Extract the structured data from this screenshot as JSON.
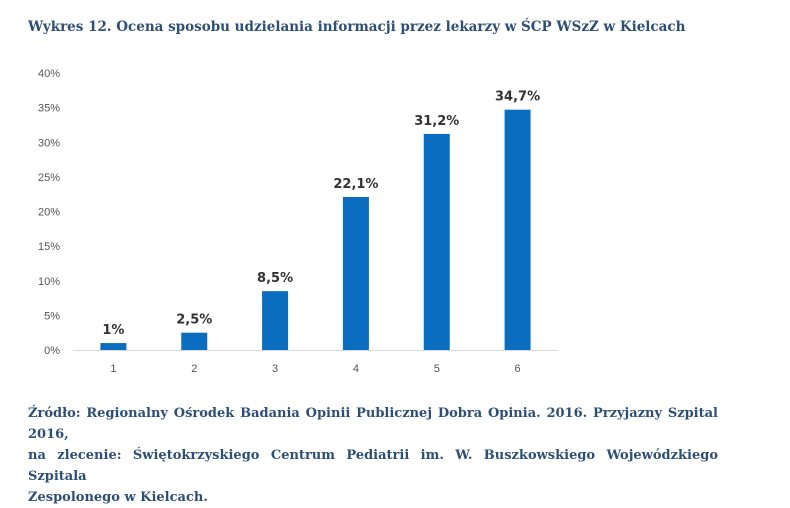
{
  "chart_data": {
    "type": "bar",
    "title": "Wykres 12. Ocena sposobu udzielania informacji przez lekarzy w ŚCP WSzZ w Kielcach",
    "categories": [
      "1",
      "2",
      "3",
      "4",
      "5",
      "6"
    ],
    "values": [
      1,
      2.5,
      8.5,
      22.1,
      31.2,
      34.7
    ],
    "data_labels": [
      "1%",
      "2,5%",
      "8,5%",
      "22,1%",
      "31,2%",
      "34,7%"
    ],
    "y_ticks": [
      "0%",
      "5%",
      "10%",
      "15%",
      "20%",
      "25%",
      "30%",
      "35%",
      "40%"
    ],
    "ylim": [
      0,
      40
    ],
    "grid": false,
    "bar_color": "#0a6dbf"
  },
  "source": {
    "lines": [
      "Źródło: Regionalny Ośrodek Badania Opinii Publicznej Dobra Opinia. 2016. Przyjazny Szpital 2016,",
      "na zlecenie: Świętokrzyskiego Centrum Pediatrii im. W. Buszkowskiego Wojewódzkiego Szpitala",
      "Zespolonego w Kielcach."
    ]
  }
}
